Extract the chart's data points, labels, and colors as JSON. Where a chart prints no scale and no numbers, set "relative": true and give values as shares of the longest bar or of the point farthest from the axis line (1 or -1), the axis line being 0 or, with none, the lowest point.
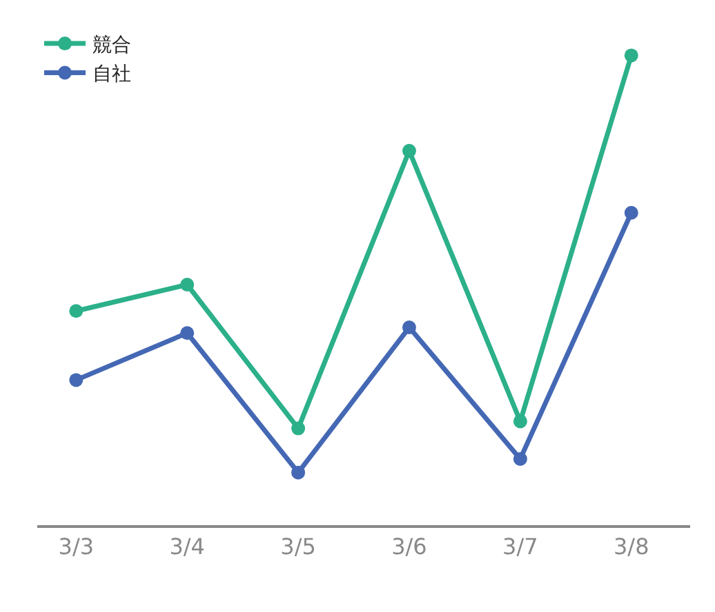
{
  "chart_data": {
    "type": "line",
    "relative": true,
    "categories": [
      "3/3",
      "3/4",
      "3/5",
      "3/6",
      "3/7",
      "3/8"
    ],
    "series": [
      {
        "name": "競合",
        "color": "#2bb08a",
        "values": [
          0.456,
          0.512,
          0.206,
          0.797,
          0.221,
          1
        ]
      },
      {
        "name": "自社",
        "color": "#4468b4",
        "values": [
          0.309,
          0.409,
          0.112,
          0.421,
          0.141,
          0.665
        ]
      }
    ],
    "legend": "top left",
    "marker": "circle",
    "line_style": "solid"
  }
}
